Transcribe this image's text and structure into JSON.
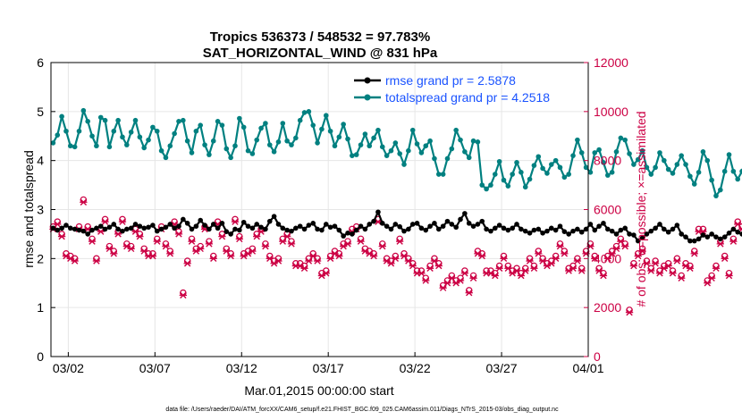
{
  "chart_data": {
    "type": "line",
    "title_line1": "Tropics 536373 / 548532 = 97.783%",
    "title_line2": "SAT_HORIZONTAL_WIND @ 831 hPa",
    "xlabel": "Mar.01,2015 00:00:00 start",
    "ylabel_left": "rmse and totalspread",
    "ylabel_right": "# of obs: o=possible; ×=assimilated",
    "footnote": "data file: /Users/raeder/DAI/ATM_forcXX/CAM6_setup/f.e21.FHIST_BGC.f09_025.CAM6assim.011/Diags_NTrS_2015-03/obs_diag_output.nc",
    "xlim": [
      0,
      31
    ],
    "ylim_left": [
      0,
      6
    ],
    "ylim_right": [
      0,
      12000
    ],
    "x_tick_positions": [
      1,
      6,
      11,
      16,
      21,
      26,
      31
    ],
    "x_tick_labels": [
      "03/02",
      "03/07",
      "03/12",
      "03/17",
      "03/22",
      "03/27",
      "04/01"
    ],
    "y_ticks_left": [
      0,
      1,
      2,
      3,
      4,
      5,
      6
    ],
    "y_ticks_right": [
      0,
      2000,
      4000,
      6000,
      8000,
      10000,
      12000
    ],
    "grid": true,
    "x_step_days": 0.25,
    "x_start": 0.125,
    "series": [
      {
        "name": "rmse grand pr = 2.5878",
        "axis": "left",
        "color": "#000000",
        "values": [
          2.62,
          2.58,
          2.62,
          2.68,
          2.62,
          2.6,
          2.58,
          2.56,
          2.5,
          2.58,
          2.62,
          2.66,
          2.6,
          2.64,
          2.7,
          2.6,
          2.56,
          2.6,
          2.62,
          2.7,
          2.66,
          2.62,
          2.64,
          2.68,
          2.56,
          2.6,
          2.64,
          2.7,
          2.62,
          2.66,
          2.8,
          2.72,
          2.6,
          2.66,
          2.78,
          2.68,
          2.6,
          2.7,
          2.62,
          2.72,
          2.55,
          2.5,
          2.6,
          2.58,
          2.74,
          2.66,
          2.62,
          2.7,
          2.64,
          2.6,
          2.76,
          2.86,
          2.7,
          2.62,
          2.58,
          2.56,
          2.62,
          2.66,
          2.6,
          2.68,
          2.72,
          2.6,
          2.58,
          2.7,
          2.64,
          2.66,
          2.58,
          2.46,
          2.52,
          2.5,
          2.58,
          2.66,
          2.6,
          2.7,
          2.76,
          2.95,
          2.72,
          2.66,
          2.6,
          2.7,
          2.65,
          2.56,
          2.6,
          2.7,
          2.72,
          2.62,
          2.58,
          2.66,
          2.72,
          2.6,
          2.66,
          2.76,
          2.7,
          2.64,
          2.8,
          2.92,
          2.72,
          2.66,
          2.7,
          2.76,
          2.6,
          2.56,
          2.62,
          2.68,
          2.62,
          2.58,
          2.62,
          2.7,
          2.6,
          2.56,
          2.52,
          2.58,
          2.6,
          2.52,
          2.56,
          2.62,
          2.58,
          2.66,
          2.55,
          2.5,
          2.56,
          2.6,
          2.54,
          2.6,
          2.7,
          2.58,
          2.66,
          2.72,
          2.6,
          2.56,
          2.5,
          2.58,
          2.62,
          2.5,
          2.48,
          2.36,
          2.42,
          2.5,
          2.56,
          2.62,
          2.7,
          2.6,
          2.54,
          2.6,
          2.68,
          2.5,
          2.44,
          2.36,
          2.36,
          2.4,
          2.48,
          2.44,
          2.5,
          2.44,
          2.4,
          2.44,
          2.52,
          2.6,
          2.54,
          2.5,
          2.56,
          2.66,
          2.62,
          2.86,
          2.7,
          2.56,
          2.46,
          2.62,
          2.72,
          2.6,
          2.52,
          2.56,
          2.6,
          2.66,
          2.58,
          2.5,
          2.56,
          2.62,
          2.54,
          2.6,
          2.64,
          2.56,
          2.52,
          2.6,
          2.56,
          2.5,
          2.6,
          2.64,
          2.56,
          2.62,
          2.68,
          2.5,
          2.46,
          2.58,
          2.66,
          2.78,
          2.6,
          2.62,
          2.58,
          2.6
        ]
      },
      {
        "name": "totalspread grand pr = 4.2518",
        "axis": "left",
        "color": "#008080",
        "values": [
          4.36,
          4.52,
          4.9,
          4.6,
          4.3,
          4.28,
          4.6,
          5.02,
          4.8,
          4.5,
          4.3,
          4.88,
          4.82,
          4.28,
          4.6,
          4.82,
          4.48,
          4.32,
          4.58,
          4.82,
          4.48,
          4.26,
          4.42,
          4.68,
          4.6,
          4.2,
          4.06,
          4.3,
          4.55,
          4.8,
          4.82,
          4.4,
          4.16,
          4.6,
          4.72,
          4.32,
          4.12,
          4.4,
          4.8,
          4.72,
          4.24,
          4.06,
          4.3,
          4.86,
          4.68,
          4.2,
          4.14,
          4.42,
          4.66,
          4.76,
          4.32,
          4.18,
          4.38,
          4.76,
          4.4,
          4.32,
          4.46,
          4.82,
          4.98,
          5.0,
          4.72,
          4.36,
          4.64,
          4.92,
          4.6,
          4.3,
          4.48,
          4.74,
          4.44,
          4.1,
          4.12,
          4.32,
          4.54,
          4.3,
          4.46,
          4.62,
          4.28,
          4.1,
          4.2,
          4.36,
          4.14,
          3.92,
          4.2,
          4.62,
          4.34,
          4.16,
          4.3,
          4.4,
          4.04,
          3.72,
          3.72,
          4.04,
          4.24,
          4.62,
          4.42,
          4.18,
          4.06,
          4.4,
          4.38,
          3.5,
          3.42,
          3.5,
          3.72,
          3.98,
          3.6,
          3.48,
          3.72,
          3.96,
          3.76,
          3.46,
          3.62,
          3.9,
          4.08,
          3.84,
          3.74,
          3.92,
          4.0,
          3.86,
          3.66,
          3.72,
          4.1,
          4.42,
          4.16,
          3.86,
          3.76,
          4.16,
          4.22,
          3.96,
          3.7,
          3.76,
          4.18,
          4.46,
          4.42,
          4.14,
          3.92,
          4.02,
          4.2,
          3.86,
          3.72,
          3.86,
          4.16,
          4.0,
          3.82,
          3.74,
          3.92,
          4.1,
          3.92,
          3.68,
          3.52,
          3.76,
          4.18,
          4.0,
          3.6,
          3.28,
          3.4,
          3.78,
          4.12,
          3.78,
          3.62,
          3.78,
          4.1,
          4.2,
          3.82,
          3.92,
          4.06,
          4.62,
          4.36,
          4.16,
          4.52,
          4.7,
          4.32,
          4.16,
          4.44,
          4.42,
          4.12,
          3.94,
          4.36,
          4.46,
          4.2,
          4.05,
          4.16,
          4.2,
          4.08,
          4.1,
          4.26,
          4.14,
          4.1,
          4.22,
          4.4,
          4.1,
          4.08,
          4.5,
          4.6,
          4.72,
          4.65,
          4.5,
          4.3,
          4.2
        ]
      },
      {
        "name": "possible obs",
        "axis": "right",
        "color": "#cc0044",
        "marker": "o",
        "values": [
          5300,
          5500,
          5000,
          4200,
          4100,
          4000,
          5300,
          6400,
          5300,
          4800,
          4000,
          5200,
          5600,
          4500,
          4300,
          5100,
          5600,
          4600,
          4500,
          5200,
          5000,
          4400,
          4200,
          4200,
          4800,
          5300,
          4600,
          4300,
          5500,
          5100,
          2600,
          3900,
          4800,
          4400,
          4500,
          5300,
          4700,
          4100,
          5500,
          5000,
          4400,
          4200,
          5600,
          4900,
          4200,
          4300,
          4400,
          5000,
          5200,
          4600,
          4100,
          3900,
          4000,
          4800,
          5000,
          4700,
          3800,
          3800,
          3700,
          4000,
          4200,
          4000,
          3400,
          3500,
          4100,
          4300,
          4200,
          4600,
          4700,
          5200,
          5300,
          4800,
          4400,
          4300,
          4200,
          5600,
          4600,
          4000,
          3900,
          4100,
          4800,
          4200,
          4000,
          3800,
          3500,
          3500,
          3200,
          3700,
          4000,
          3800,
          2900,
          3100,
          3300,
          3100,
          3200,
          3500,
          2700,
          3300,
          4300,
          4200,
          3500,
          3500,
          3400,
          3700,
          4100,
          3700,
          3500,
          3600,
          3400,
          3600,
          4000,
          3700,
          4300,
          4000,
          3800,
          3900,
          4100,
          4600,
          4300,
          3600,
          3700,
          4000,
          3600,
          4300,
          4600,
          4100,
          3600,
          3400,
          4100,
          4300,
          4500,
          4800,
          4600,
          1900,
          3800,
          4200,
          4400,
          3900,
          3600,
          3900,
          3500,
          3700,
          3800,
          3500,
          4000,
          3300,
          3800,
          3700,
          4300,
          5200,
          5200,
          3100,
          3300,
          3700,
          4700,
          4100,
          3400,
          4800,
          5500,
          5300,
          3600,
          4600,
          5200,
          3900,
          3900,
          3700,
          4300,
          5100,
          5400,
          4600,
          4700,
          5100,
          5200,
          4900,
          3900,
          3800,
          3700,
          4200,
          5200,
          4200,
          4100,
          4000,
          5100,
          5400,
          5200,
          4900,
          4700,
          4700,
          5300,
          6000,
          5400,
          3200,
          0
        ]
      },
      {
        "name": "assimilated obs",
        "axis": "right",
        "color": "#cc0044",
        "marker": "x",
        "values": [
          5200,
          5400,
          4900,
          4100,
          4000,
          3900,
          5200,
          6300,
          5200,
          4700,
          3900,
          5100,
          5500,
          4400,
          4200,
          5000,
          5500,
          4500,
          4400,
          5100,
          4900,
          4300,
          4100,
          4100,
          4700,
          5200,
          4500,
          4200,
          5400,
          5000,
          2500,
          3800,
          4700,
          4300,
          4400,
          5200,
          4600,
          4000,
          5400,
          4900,
          4300,
          4100,
          5500,
          4800,
          4100,
          4200,
          4300,
          4900,
          5100,
          4500,
          4000,
          3800,
          3900,
          4700,
          4900,
          4600,
          3700,
          3700,
          3600,
          3900,
          4100,
          3900,
          3300,
          3400,
          4000,
          4200,
          4100,
          4500,
          4600,
          5100,
          5200,
          4700,
          4300,
          4200,
          4100,
          5500,
          4500,
          3900,
          3800,
          4000,
          4700,
          4100,
          3900,
          3700,
          3400,
          3400,
          3100,
          3600,
          3900,
          3700,
          2800,
          3000,
          3200,
          3000,
          3100,
          3400,
          2600,
          3200,
          4200,
          4100,
          3400,
          3400,
          3300,
          3600,
          4000,
          3600,
          3400,
          3500,
          3300,
          3500,
          3900,
          3600,
          4200,
          3900,
          3700,
          3800,
          4000,
          4500,
          4200,
          3500,
          3600,
          3900,
          3500,
          4200,
          4500,
          4000,
          3500,
          3300,
          4000,
          4200,
          4400,
          4700,
          4500,
          1800,
          3700,
          4100,
          4300,
          3800,
          3500,
          3800,
          3400,
          3600,
          3700,
          3400,
          3900,
          3200,
          3700,
          3600,
          4200,
          5100,
          5100,
          3000,
          3200,
          3600,
          4600,
          4000,
          3300,
          4700,
          5400,
          5200,
          3500,
          4500,
          5100,
          3800,
          3800,
          3600,
          4200,
          5000,
          5300,
          4500,
          4600,
          5000,
          5100,
          4800,
          3800,
          3700,
          3600,
          4100,
          5100,
          4100,
          4000,
          3900,
          5000,
          5300,
          5100,
          4800,
          4600,
          4600,
          5200,
          5900,
          5300,
          3100,
          0
        ]
      }
    ],
    "legend_position": "top-right"
  }
}
